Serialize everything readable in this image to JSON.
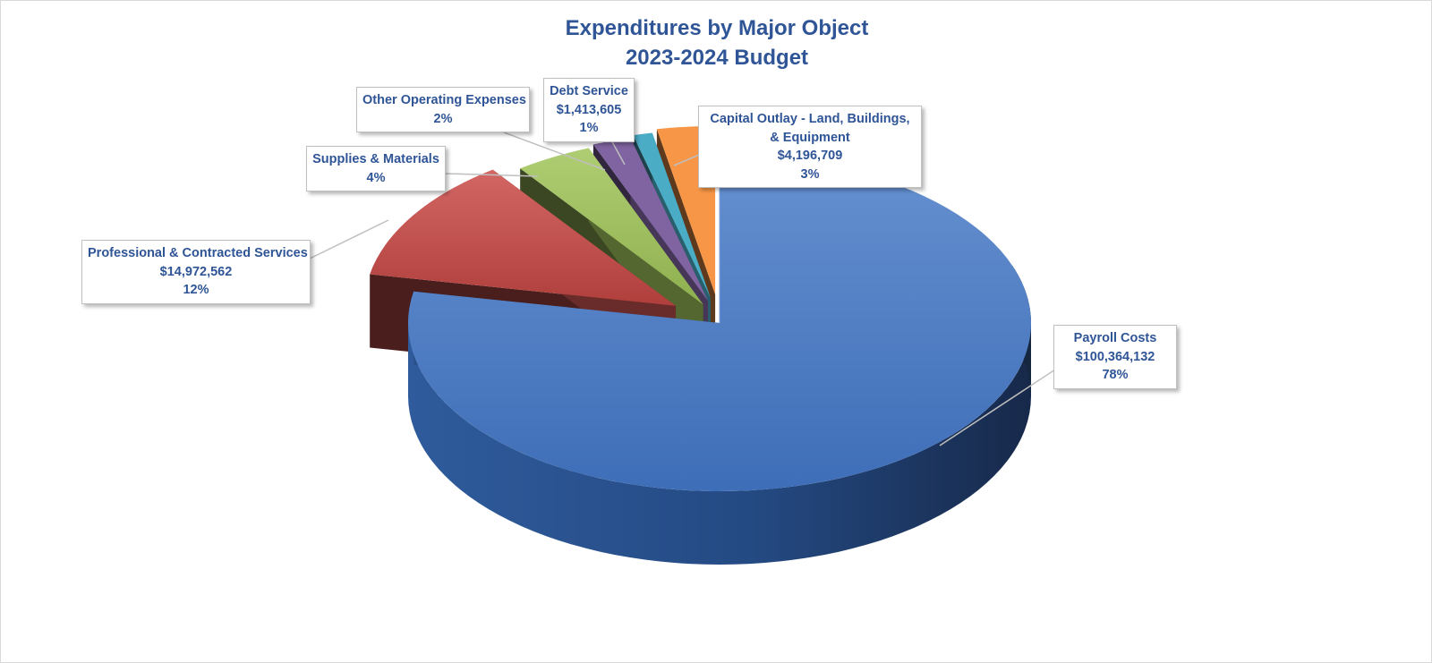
{
  "chart_data": {
    "type": "pie",
    "title": "Expenditures by Major Object",
    "subtitle": "2023-2024 Budget",
    "slices": [
      {
        "label": "Payroll Costs",
        "value": 100364132,
        "value_label": "$100,364,132",
        "percent": 78,
        "percent_label": "78%",
        "color": "#4472c4"
      },
      {
        "label": "Professional & Contracted Services",
        "value": 14972562,
        "value_label": "$14,972,562",
        "percent": 12,
        "percent_label": "12%",
        "color": "#c0504d"
      },
      {
        "label": "Supplies & Materials",
        "value_label": "",
        "percent": 4,
        "percent_label": "4%",
        "color": "#9bbb59"
      },
      {
        "label": "Other Operating Expenses",
        "value_label": "",
        "percent": 2,
        "percent_label": "2%",
        "color": "#8064a2"
      },
      {
        "label": "Debt Service",
        "value": 1413605,
        "value_label": "$1,413,605",
        "percent": 1,
        "percent_label": "1%",
        "color": "#4bacc6"
      },
      {
        "label": "Capital Outlay - Land, Buildings, & Equipment",
        "value": 4196709,
        "value_label": "$4,196,709",
        "percent": 3,
        "percent_label": "3%",
        "color": "#f79646"
      }
    ],
    "style": "3d-exploded-pie",
    "legend": "none"
  }
}
